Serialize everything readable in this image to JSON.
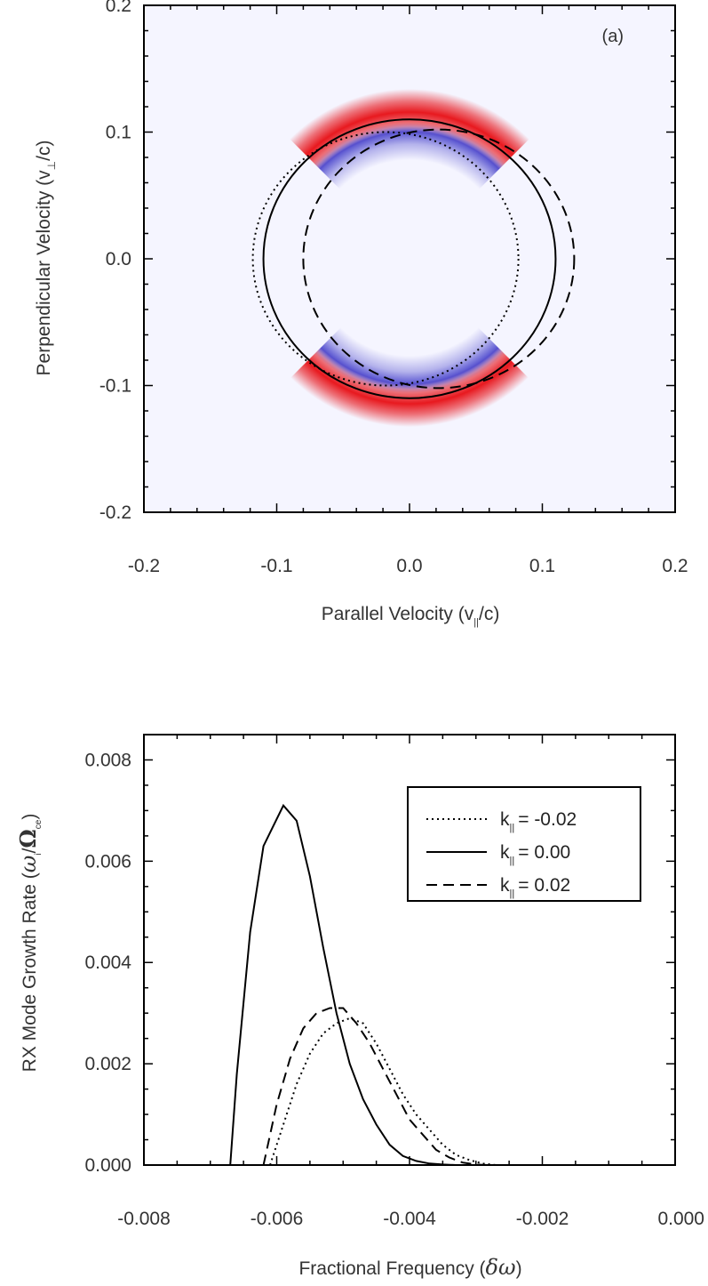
{
  "chart_data": [
    {
      "type": "heatmap",
      "panel_label": "(a)",
      "xlabel": {
        "main": "Parallel Velocity (v",
        "sub": "||",
        "tail": "/c)"
      },
      "ylabel": {
        "main": "Perpendicular Velocity (v",
        "sub": "⊥",
        "tail": "/c)"
      },
      "xlim": [
        -0.2,
        0.2
      ],
      "ylim": [
        -0.2,
        0.2
      ],
      "xticks": [
        "-0.2",
        "-0.1",
        "0.0",
        "0.1",
        "0.2"
      ],
      "yticks": [
        "-0.2",
        "-0.1",
        "0.0",
        "0.1",
        "0.2"
      ],
      "colors": {
        "positive": "#e8191f",
        "negative": "#3b36c8",
        "background": "#f5f5ff"
      },
      "resonance_curves": [
        {
          "style": "dotted",
          "center": [
            -0.018,
            0.0
          ],
          "radius": [
            0.1,
            0.1
          ]
        },
        {
          "style": "solid",
          "center": [
            0.0,
            0.0
          ],
          "radius": [
            0.11,
            0.11
          ]
        },
        {
          "style": "dashed",
          "center": [
            0.022,
            0.0
          ],
          "radius": [
            0.102,
            0.102
          ]
        }
      ],
      "distribution": {
        "positive_ring": {
          "center": [
            0.0,
            0.0
          ],
          "radius": 0.125,
          "half_angle_deg": 45
        },
        "negative_ring": {
          "center": [
            0.0,
            0.0
          ],
          "radius": 0.1,
          "half_angle_deg": 45
        }
      }
    },
    {
      "type": "line",
      "xlabel": {
        "main": "Fractional Frequency (",
        "greek": "δω",
        "tail": ")"
      },
      "ylabel": {
        "main": "RX Mode Growth Rate (",
        "greek1": "ω",
        "sub1": "i",
        "slash": "/",
        "greek2": "Ω",
        "sub2": "ce",
        "tail": ")"
      },
      "xlim": [
        -0.008,
        0.0
      ],
      "ylim": [
        0.0,
        0.0085
      ],
      "xticks": [
        "-0.008",
        "-0.006",
        "-0.004",
        "-0.002",
        "0.000"
      ],
      "yticks": [
        "0.000",
        "0.002",
        "0.004",
        "0.006",
        "0.008"
      ],
      "legend_position": "top-right",
      "series": [
        {
          "name": "k|| = -0.02",
          "legend": {
            "k": "k",
            "sub": "||",
            "eq": "= -0.02"
          },
          "style": "dotted",
          "x": [
            -0.0061,
            -0.0059,
            -0.0057,
            -0.0055,
            -0.0053,
            -0.0051,
            -0.0049,
            -0.0047,
            -0.0045,
            -0.0043,
            -0.0041,
            -0.0039,
            -0.0037,
            -0.0035,
            -0.0033,
            -0.0031,
            -0.0029,
            -0.0027,
            -0.0025,
            -0.0023,
            -0.0021
          ],
          "y": [
            0.0,
            0.0008,
            0.0016,
            0.0022,
            0.0026,
            0.0028,
            0.0029,
            0.0028,
            0.0024,
            0.0019,
            0.0014,
            0.001,
            0.0007,
            0.0004,
            0.0002,
            0.0001,
            3e-05,
            0.0,
            0.0,
            0.0,
            0.0
          ]
        },
        {
          "name": "k|| = 0.00",
          "legend": {
            "k": "k",
            "sub": "||",
            "eq": "= 0.00"
          },
          "style": "solid",
          "x": [
            -0.0067,
            -0.0066,
            -0.0064,
            -0.0062,
            -0.0059,
            -0.0057,
            -0.0055,
            -0.0053,
            -0.0051,
            -0.0049,
            -0.0047,
            -0.0045,
            -0.0043,
            -0.0041,
            -0.0039,
            -0.0037,
            -0.0035,
            -0.0033,
            -0.003,
            -0.0027
          ],
          "y": [
            0.0,
            0.0018,
            0.0046,
            0.0063,
            0.0071,
            0.0068,
            0.0057,
            0.0043,
            0.003,
            0.002,
            0.0013,
            0.0008,
            0.0004,
            0.00018,
            8e-05,
            3e-05,
            1e-05,
            0.0,
            0.0,
            0.0
          ]
        },
        {
          "name": "k|| = 0.02",
          "legend": {
            "k": "k",
            "sub": "||",
            "eq": "= 0.02"
          },
          "style": "dashed",
          "x": [
            -0.0062,
            -0.006,
            -0.0058,
            -0.0056,
            -0.0054,
            -0.0052,
            -0.005,
            -0.0048,
            -0.0046,
            -0.0044,
            -0.0042,
            -0.004,
            -0.0038,
            -0.0036,
            -0.0034,
            -0.0032,
            -0.003,
            -0.0028,
            -0.0026
          ],
          "y": [
            0.0,
            0.0012,
            0.0021,
            0.0027,
            0.003,
            0.0031,
            0.0031,
            0.0028,
            0.0024,
            0.0019,
            0.0014,
            0.0009,
            0.0006,
            0.0003,
            0.00015,
            5e-05,
            1e-05,
            0.0,
            0.0
          ]
        }
      ]
    }
  ]
}
